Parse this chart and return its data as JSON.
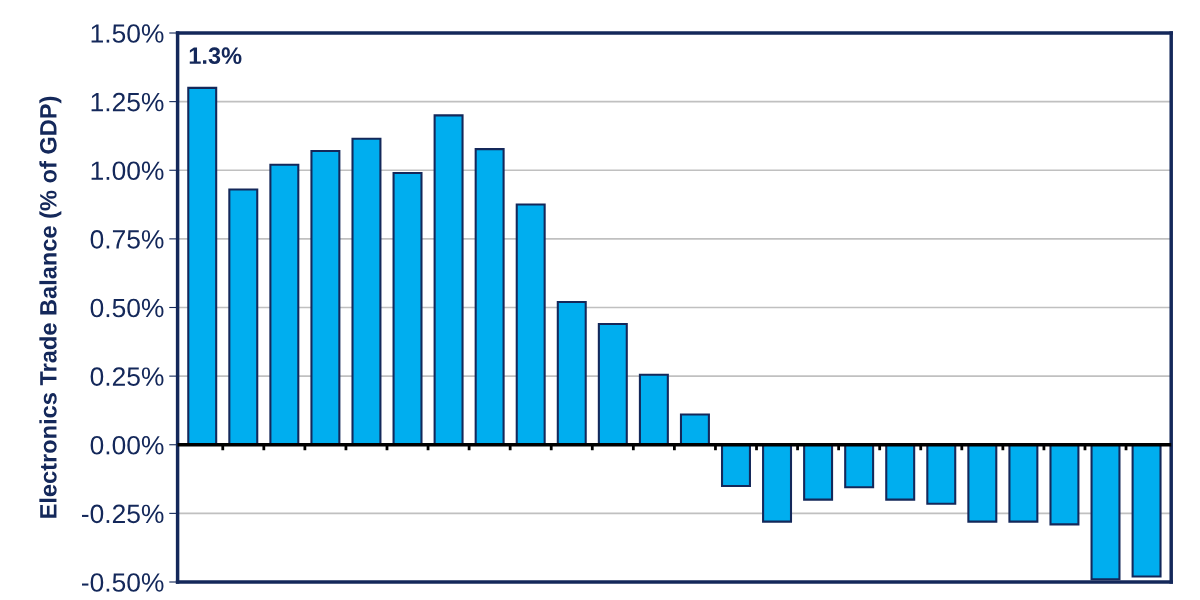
{
  "chart_data": {
    "type": "bar",
    "ylabel": "Electronics Trade Balance (% of GDP)",
    "categories": [
      null,
      null,
      null,
      null,
      null,
      null,
      null,
      null,
      null,
      null,
      null,
      null,
      null,
      null,
      null,
      null,
      null,
      null,
      null,
      null,
      null,
      null,
      null,
      null
    ],
    "values": [
      1.3,
      0.93,
      1.02,
      1.07,
      1.115,
      0.99,
      1.2,
      1.077,
      0.875,
      0.52,
      0.44,
      0.255,
      0.11,
      -0.15,
      -0.28,
      -0.2,
      -0.155,
      -0.2,
      -0.215,
      -0.28,
      -0.28,
      -0.29,
      -0.49,
      -0.48
    ],
    "value_labels": [
      "1.3%",
      null,
      null,
      null,
      null,
      null,
      null,
      null,
      null,
      null,
      null,
      null,
      null,
      null,
      null,
      null,
      null,
      null,
      null,
      null,
      null,
      null,
      null,
      null
    ],
    "color": "#00aeef",
    "ylim": [
      -0.5,
      1.5
    ],
    "yticks": [
      {
        "value": -0.5,
        "label": "-0.50%"
      },
      {
        "value": -0.25,
        "label": "-0.25%"
      },
      {
        "value": 0,
        "label": "0.00%"
      },
      {
        "value": 0.25,
        "label": "0.25%"
      },
      {
        "value": 0.5,
        "label": "0.50%"
      },
      {
        "value": 0.75,
        "label": "0.75%"
      },
      {
        "value": 1.0,
        "label": "1.00%"
      },
      {
        "value": 1.25,
        "label": "1.25%"
      },
      {
        "value": 1.5,
        "label": "1.50%"
      }
    ],
    "grid": "y",
    "legend": false,
    "tick_labels": "y"
  }
}
